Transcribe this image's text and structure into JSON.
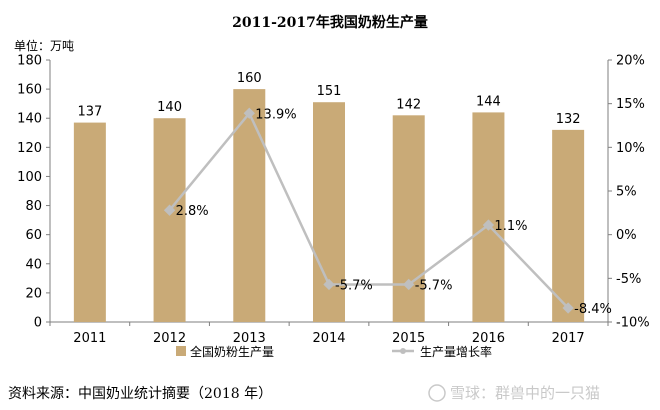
{
  "header": {
    "title": "2011-2017年我国奶粉生产量",
    "unit_label": "单位：万吨"
  },
  "footer": {
    "source": "资料来源：中国奶业统计摘要（2018 年）",
    "watermark": "雪球：群兽中的一只猫"
  },
  "legend": {
    "bar_label": "全国奶粉生产量",
    "line_label": "生产量增长率"
  },
  "colors": {
    "bar": "#C9AA77",
    "line": "#BFBFBF",
    "axis": "#7f7f7f"
  },
  "chart_data": {
    "type": "bar",
    "categories": [
      "2011",
      "2012",
      "2013",
      "2014",
      "2015",
      "2016",
      "2017"
    ],
    "series": [
      {
        "name": "全国奶粉生产量",
        "type": "bar",
        "axis": "left",
        "values": [
          137,
          140,
          160,
          151,
          142,
          144,
          132
        ],
        "labels": [
          "137",
          "140",
          "160",
          "151",
          "142",
          "144",
          "132"
        ]
      },
      {
        "name": "生产量增长率",
        "type": "line",
        "axis": "right",
        "values": [
          null,
          2.8,
          13.9,
          -5.7,
          -5.7,
          1.1,
          -8.4
        ],
        "labels": [
          "",
          "2.8%",
          "13.9%",
          "-5.7%",
          "-5.7%",
          "1.1%",
          "-8.4%"
        ]
      }
    ],
    "y_left": {
      "min": 0,
      "max": 180,
      "ticks": [
        0,
        20,
        40,
        60,
        80,
        100,
        120,
        140,
        160,
        180
      ]
    },
    "y_right": {
      "min": -10,
      "max": 20,
      "ticks": [
        -10,
        -5,
        0,
        5,
        10,
        15,
        20
      ],
      "tick_labels": [
        "-10%",
        "-5%",
        "0%",
        "5%",
        "10%",
        "15%",
        "20%"
      ]
    },
    "grid": false,
    "legend_position": "bottom"
  }
}
